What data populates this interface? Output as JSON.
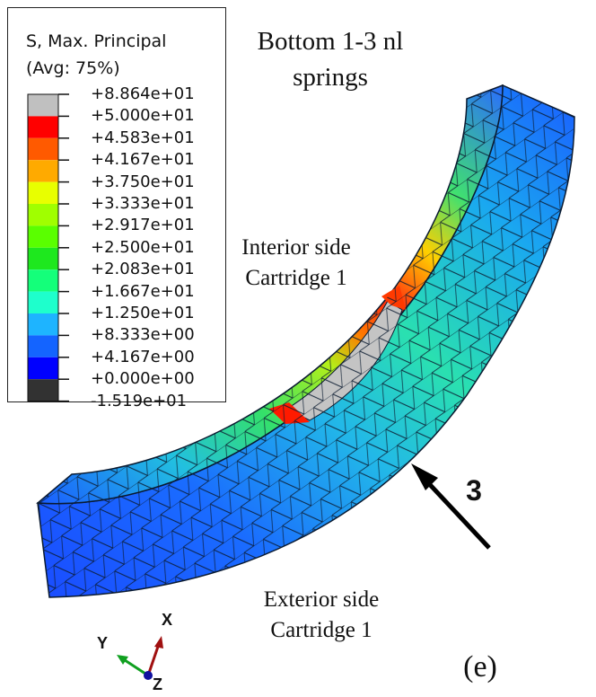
{
  "legend": {
    "title_line1": "S, Max. Principal",
    "title_line2": "(Avg: 75%)",
    "levels": [
      {
        "value": "+8.864e+01",
        "color": "#c0c0c0"
      },
      {
        "value": "+5.000e+01",
        "color": "#ff0000"
      },
      {
        "value": "+4.583e+01",
        "color": "#ff5a00"
      },
      {
        "value": "+4.167e+01",
        "color": "#ffaa00"
      },
      {
        "value": "+3.750e+01",
        "color": "#e8ff00"
      },
      {
        "value": "+3.333e+01",
        "color": "#a0ff00"
      },
      {
        "value": "+2.917e+01",
        "color": "#5aff00"
      },
      {
        "value": "+2.500e+01",
        "color": "#1ee81e"
      },
      {
        "value": "+2.083e+01",
        "color": "#14ff7a"
      },
      {
        "value": "+1.667e+01",
        "color": "#1effcc"
      },
      {
        "value": "+1.250e+01",
        "color": "#1eb4ff"
      },
      {
        "value": "+8.333e+00",
        "color": "#1464ff"
      },
      {
        "value": "+4.167e+00",
        "color": "#0000ff"
      },
      {
        "value": "+0.000e+00",
        "color": "#323232"
      },
      {
        "value": "-1.519e+01",
        "color": ""
      }
    ]
  },
  "labels": {
    "title_line1": "Bottom 1-3 nl",
    "title_line2": "springs",
    "interior_line1": "Interior side",
    "interior_line2": "Cartridge 1",
    "exterior_line1": "Exterior side",
    "exterior_line2": "Cartridge 1",
    "arrow_label": "3",
    "panel_label": "(e)"
  },
  "triad": {
    "x_label": "X",
    "y_label": "Y",
    "z_label": "Z",
    "x_color": "#a01010",
    "y_color": "#10a020",
    "z_color": "#1010a0"
  }
}
